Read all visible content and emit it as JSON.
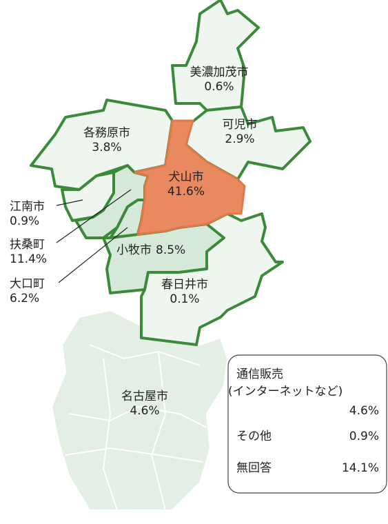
{
  "regions": [
    {
      "name": "美濃加茂市",
      "share": "0.6%"
    },
    {
      "name": "可児市",
      "share": "2.9%"
    },
    {
      "name": "各務原市",
      "share": "3.8%"
    },
    {
      "name": "犬山市",
      "share": "41.6%"
    },
    {
      "name": "江南市",
      "share": "0.9%"
    },
    {
      "name": "扶桑町",
      "share": "11.4%"
    },
    {
      "name": "大口町",
      "share": "6.2%"
    },
    {
      "name": "小牧市",
      "share": "8.5%"
    },
    {
      "name": "春日井市",
      "share": "0.1%"
    },
    {
      "name": "名古屋市",
      "share": "4.6%"
    }
  ],
  "legend": [
    {
      "name": "通信販売",
      "note": "(インターネットなど)",
      "share": "4.6%"
    },
    {
      "name": "その他",
      "share": "0.9%"
    },
    {
      "name": "無回答",
      "share": "14.1%"
    }
  ]
}
